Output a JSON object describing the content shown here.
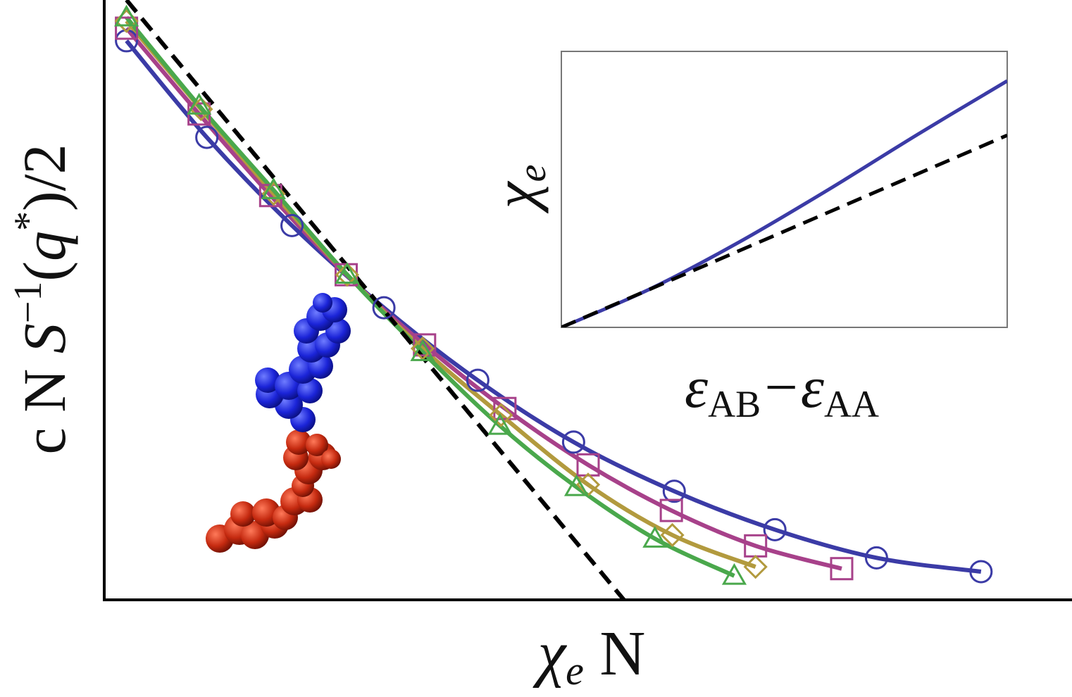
{
  "chart_data": [
    {
      "type": "line",
      "x_label": [
        "χ",
        "e",
        " N"
      ],
      "y_label": [
        "c N ",
        "S",
        "−1",
        "(",
        "q",
        "*",
        ")/2"
      ],
      "xlim": [
        0,
        1
      ],
      "ylim": [
        0,
        1
      ],
      "series": [
        {
          "color": "#3b3ba6",
          "marker": "circle",
          "x": [
            0.023,
            0.106,
            0.194,
            0.289,
            0.386,
            0.485,
            0.589,
            0.693,
            0.798,
            0.906
          ],
          "values": [
            0.932,
            0.771,
            0.624,
            0.487,
            0.366,
            0.263,
            0.181,
            0.117,
            0.07,
            0.047
          ]
        },
        {
          "color": "#a7418a",
          "marker": "square",
          "x": [
            0.023,
            0.098,
            0.172,
            0.25,
            0.331,
            0.414,
            0.5,
            0.586,
            0.673,
            0.762
          ],
          "values": [
            0.953,
            0.81,
            0.674,
            0.542,
            0.425,
            0.319,
            0.225,
            0.149,
            0.09,
            0.052
          ]
        },
        {
          "color": "#b29a3e",
          "marker": "diamond",
          "x": [
            0.023,
            0.1,
            0.175,
            0.251,
            0.329,
            0.41,
            0.5,
            0.587,
            0.673
          ],
          "values": [
            0.965,
            0.818,
            0.677,
            0.542,
            0.419,
            0.308,
            0.192,
            0.108,
            0.055
          ]
        },
        {
          "color": "#4aa84c",
          "marker": "triangle",
          "x": [
            0.023,
            0.098,
            0.175,
            0.251,
            0.329,
            0.409,
            0.488,
            0.569,
            0.651
          ],
          "values": [
            0.971,
            0.824,
            0.683,
            0.542,
            0.413,
            0.29,
            0.188,
            0.102,
            0.04
          ]
        },
        {
          "color": "#000000",
          "dash": true,
          "x": [
            0.023,
            0.537
          ],
          "values": [
            1,
            0
          ]
        }
      ]
    },
    {
      "type": "line",
      "x_label": [
        "ε",
        "AB",
        "−ε",
        "AA"
      ],
      "y_label": [
        "χ",
        "e"
      ],
      "xlim": [
        0,
        1
      ],
      "ylim": [
        0,
        1
      ],
      "series": [
        {
          "color": "#3b3ba6",
          "x": [
            0,
            0.2,
            0.4,
            0.6,
            0.8,
            1
          ],
          "values": [
            0,
            0.14,
            0.31,
            0.5,
            0.7,
            0.893
          ]
        },
        {
          "color": "#000000",
          "dash": true,
          "x": [
            0,
            1
          ],
          "values": [
            0,
            0.696
          ]
        }
      ]
    }
  ]
}
